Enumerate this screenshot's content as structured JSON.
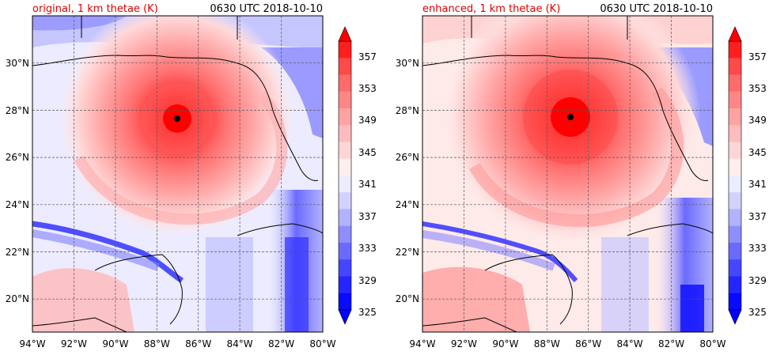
{
  "colors": {
    "title_left": "#e00000",
    "map_land_border": "#000000",
    "storm_center": "#000000",
    "colormap": [
      "#0a0aff",
      "#2525ff",
      "#4646ff",
      "#6a6aff",
      "#8e8eff",
      "#b2b2ff",
      "#d2d2ff",
      "#ececff",
      "#ffeeee",
      "#ffd6d6",
      "#ffbcbc",
      "#ffa2a2",
      "#ff8686",
      "#ff6a6a",
      "#ff4a4a",
      "#ff1e1e"
    ]
  },
  "panels": [
    {
      "title_left": "original, 1 km thetae (K)",
      "title_right": "0630 UTC 2018-10-10",
      "variant": "original"
    },
    {
      "title_left": "enhanced, 1 km thetae (K)",
      "title_right": "0630 UTC 2018-10-10",
      "variant": "enhanced"
    }
  ],
  "axes": {
    "x_ticks": [
      "94°W",
      "92°W",
      "90°W",
      "88°W",
      "86°W",
      "84°W",
      "82°W",
      "80°W"
    ],
    "y_ticks": [
      "30°N",
      "28°N",
      "26°N",
      "24°N",
      "22°N",
      "20°N"
    ],
    "lon_range": [
      -94,
      -80
    ],
    "lat_range": [
      18.2,
      32.1
    ],
    "grid": true,
    "grid_style": "dashed"
  },
  "colorbar": {
    "tick_labels": [
      "357",
      "353",
      "349",
      "345",
      "341",
      "337",
      "333",
      "329",
      "325"
    ],
    "range": [
      325,
      357
    ],
    "levels": 16,
    "extend": "both"
  },
  "storm_center": {
    "lon": -87.0,
    "lat": 27.7
  }
}
